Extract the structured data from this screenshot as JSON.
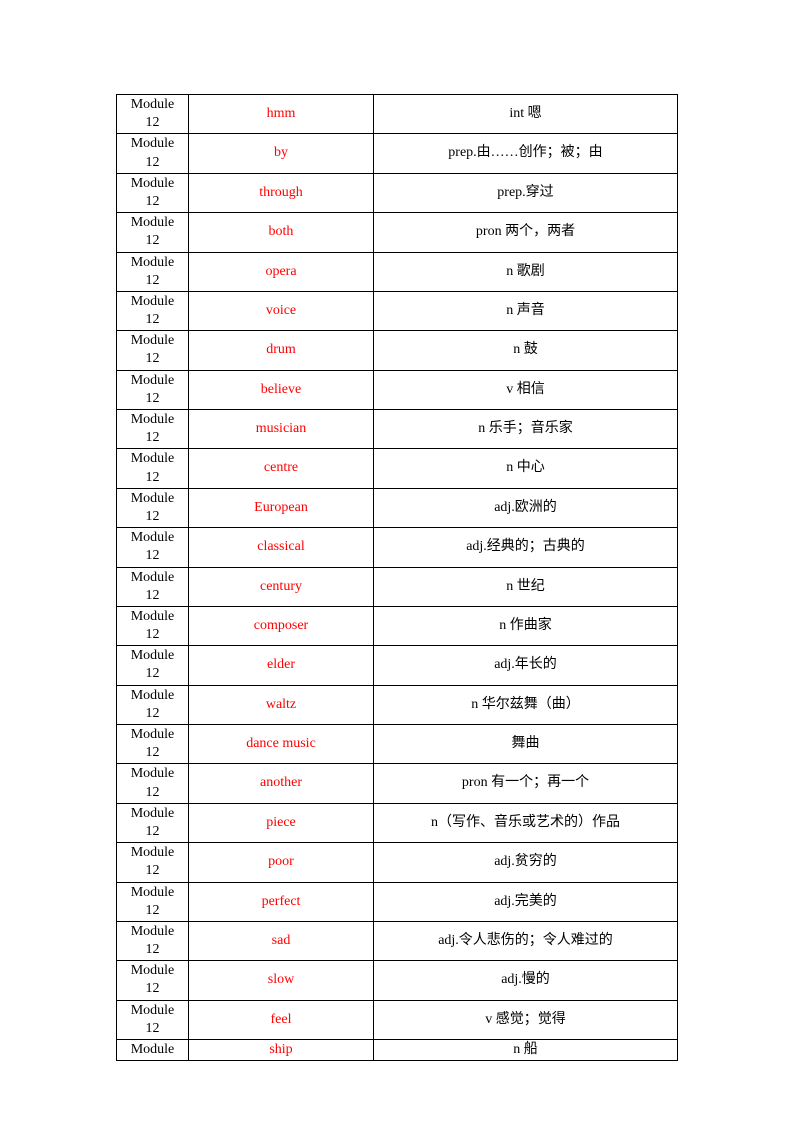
{
  "table": {
    "module_label": "Module 12",
    "module_label_last": "Module",
    "col_widths": {
      "module": 72,
      "word": 185
    },
    "colors": {
      "word": "#ff0000",
      "text": "#000000",
      "border": "#000000",
      "bg": "#ffffff"
    },
    "font_size": 14,
    "rows": [
      {
        "word": "hmm",
        "def": "int 嗯",
        "two_line": true
      },
      {
        "word": "by",
        "def": "prep.由……创作；被；由",
        "two_line": true
      },
      {
        "word": "through",
        "def": "prep.穿过",
        "two_line": true
      },
      {
        "word": "both",
        "def": "pron 两个，两者",
        "two_line": true
      },
      {
        "word": "opera",
        "def": "n 歌剧",
        "two_line": true
      },
      {
        "word": "voice",
        "def": "n 声音",
        "two_line": true
      },
      {
        "word": "drum",
        "def": "n 鼓",
        "two_line": true
      },
      {
        "word": "believe",
        "def": "v 相信",
        "two_line": true
      },
      {
        "word": "musician",
        "def": "n 乐手；音乐家",
        "two_line": true
      },
      {
        "word": "centre",
        "def": "n 中心",
        "two_line": true
      },
      {
        "word": "European",
        "def": "adj.欧洲的",
        "two_line": true
      },
      {
        "word": "classical",
        "def": "adj.经典的；古典的",
        "two_line": true
      },
      {
        "word": "century",
        "def": "n 世纪",
        "two_line": true
      },
      {
        "word": "composer",
        "def": "n 作曲家",
        "two_line": true
      },
      {
        "word": "elder",
        "def": "adj.年长的",
        "two_line": true
      },
      {
        "word": "waltz",
        "def": "n 华尔兹舞（曲）",
        "two_line": true
      },
      {
        "word": "dance music",
        "def": "舞曲",
        "two_line": true
      },
      {
        "word": "another",
        "def": "pron 有一个；再一个",
        "two_line": true
      },
      {
        "word": "piece",
        "def": "n（写作、音乐或艺术的）作品",
        "two_line": true
      },
      {
        "word": "poor",
        "def": "adj.贫穷的",
        "two_line": true
      },
      {
        "word": "perfect",
        "def": "adj.完美的",
        "two_line": true
      },
      {
        "word": "sad",
        "def": "adj.令人悲伤的；令人难过的",
        "two_line": true
      },
      {
        "word": "slow",
        "def": "adj.慢的",
        "two_line": true
      },
      {
        "word": "feel",
        "def": "v 感觉；觉得",
        "two_line": true
      },
      {
        "word": "ship",
        "def": "n 船",
        "two_line": false
      }
    ]
  }
}
